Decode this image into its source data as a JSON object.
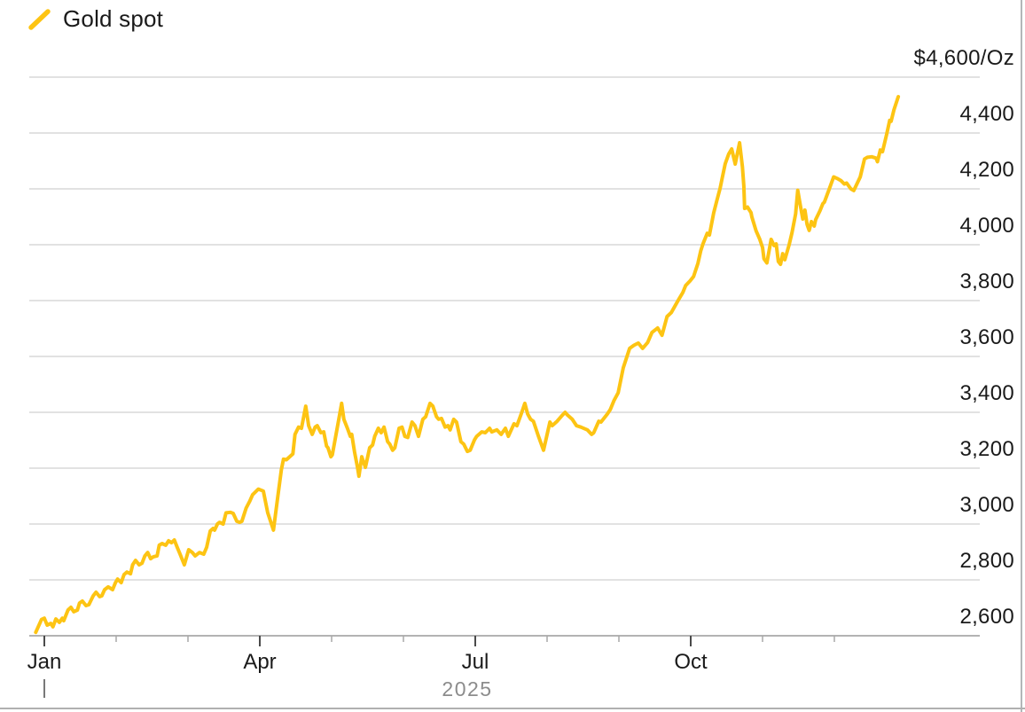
{
  "legend": {
    "label": "Gold spot",
    "swatch_icon": "yellow-slash-icon"
  },
  "colors": {
    "line": "#FDC413",
    "grid": "#d9d9d9",
    "axis": "#9a9a9a",
    "tick_major": "#4a4a4a",
    "tick_minor": "#a8a8a8",
    "text": "#1a1a1a",
    "muted_text": "#8c8c8c",
    "background": "#ffffff"
  },
  "y_axis": {
    "unit": "USD per troy ounce",
    "tick_interval": 200,
    "labels": [
      {
        "text": "$4,600/Oz",
        "value": 4600
      },
      {
        "text": "4,400",
        "value": 4400
      },
      {
        "text": "4,200",
        "value": 4200
      },
      {
        "text": "4,000",
        "value": 4000
      },
      {
        "text": "3,800",
        "value": 3800
      },
      {
        "text": "3,600",
        "value": 3600
      },
      {
        "text": "3,400",
        "value": 3400
      },
      {
        "text": "3,200",
        "value": 3200
      },
      {
        "text": "3,000",
        "value": 3000
      },
      {
        "text": "2,800",
        "value": 2800
      },
      {
        "text": "2,600",
        "value": 2600
      }
    ]
  },
  "x_axis": {
    "year_label": "2025",
    "major_ticks": [
      {
        "label": "Jan",
        "month": 0
      },
      {
        "label": "Apr",
        "month": 3
      },
      {
        "label": "Jul",
        "month": 6
      },
      {
        "label": "Oct",
        "month": 9
      }
    ],
    "minor_tick_months": [
      1,
      2,
      4,
      5,
      7,
      8,
      10,
      11
    ]
  },
  "chart_data": {
    "type": "line",
    "title": "Gold spot price",
    "x_unit": "months since 2025-01-01 (0 = Jan tick; negative = late Dec 2024)",
    "ylim": [
      2600,
      4600
    ],
    "xlim": [
      -0.21,
      13.0
    ],
    "grid": "horizontal",
    "legend_position": "top-left",
    "series": [
      {
        "name": "Gold spot",
        "unit": "$/Oz",
        "color": "#FDC413",
        "points": [
          [
            -0.12,
            2612
          ],
          [
            -0.04,
            2658
          ],
          [
            0.0,
            2663
          ],
          [
            0.04,
            2638
          ],
          [
            0.09,
            2644
          ],
          [
            0.12,
            2632
          ],
          [
            0.16,
            2660
          ],
          [
            0.21,
            2648
          ],
          [
            0.25,
            2663
          ],
          [
            0.27,
            2654
          ],
          [
            0.33,
            2692
          ],
          [
            0.37,
            2702
          ],
          [
            0.41,
            2686
          ],
          [
            0.46,
            2692
          ],
          [
            0.49,
            2717
          ],
          [
            0.53,
            2724
          ],
          [
            0.58,
            2708
          ],
          [
            0.62,
            2711
          ],
          [
            0.68,
            2743
          ],
          [
            0.72,
            2756
          ],
          [
            0.77,
            2740
          ],
          [
            0.8,
            2743
          ],
          [
            0.84,
            2765
          ],
          [
            0.89,
            2775
          ],
          [
            0.95,
            2765
          ],
          [
            0.99,
            2790
          ],
          [
            1.02,
            2803
          ],
          [
            1.07,
            2790
          ],
          [
            1.11,
            2819
          ],
          [
            1.15,
            2828
          ],
          [
            1.2,
            2822
          ],
          [
            1.23,
            2854
          ],
          [
            1.27,
            2870
          ],
          [
            1.32,
            2854
          ],
          [
            1.36,
            2860
          ],
          [
            1.4,
            2886
          ],
          [
            1.44,
            2898
          ],
          [
            1.48,
            2876
          ],
          [
            1.52,
            2883
          ],
          [
            1.57,
            2886
          ],
          [
            1.6,
            2924
          ],
          [
            1.64,
            2930
          ],
          [
            1.69,
            2924
          ],
          [
            1.73,
            2940
          ],
          [
            1.77,
            2933
          ],
          [
            1.81,
            2943
          ],
          [
            1.85,
            2917
          ],
          [
            1.89,
            2892
          ],
          [
            1.95,
            2854
          ],
          [
            2.01,
            2908
          ],
          [
            2.06,
            2898
          ],
          [
            2.1,
            2886
          ],
          [
            2.16,
            2898
          ],
          [
            2.22,
            2892
          ],
          [
            2.26,
            2917
          ],
          [
            2.31,
            2975
          ],
          [
            2.35,
            2984
          ],
          [
            2.37,
            2978
          ],
          [
            2.41,
            3000
          ],
          [
            2.44,
            3006
          ],
          [
            2.49,
            3000
          ],
          [
            2.53,
            3040
          ],
          [
            2.59,
            3042
          ],
          [
            2.63,
            3038
          ],
          [
            2.68,
            3010
          ],
          [
            2.72,
            3006
          ],
          [
            2.75,
            3010
          ],
          [
            2.81,
            3057
          ],
          [
            2.86,
            3082
          ],
          [
            2.9,
            3105
          ],
          [
            2.98,
            3125
          ],
          [
            3.05,
            3118
          ],
          [
            3.11,
            3041
          ],
          [
            3.19,
            2978
          ],
          [
            3.25,
            3098
          ],
          [
            3.3,
            3194
          ],
          [
            3.33,
            3232
          ],
          [
            3.37,
            3230
          ],
          [
            3.46,
            3251
          ],
          [
            3.49,
            3321
          ],
          [
            3.54,
            3347
          ],
          [
            3.58,
            3343
          ],
          [
            3.64,
            3422
          ],
          [
            3.68,
            3352
          ],
          [
            3.73,
            3321
          ],
          [
            3.77,
            3347
          ],
          [
            3.8,
            3352
          ],
          [
            3.85,
            3327
          ],
          [
            3.89,
            3330
          ],
          [
            3.93,
            3279
          ],
          [
            3.95,
            3273
          ],
          [
            3.99,
            3241
          ],
          [
            4.01,
            3248
          ],
          [
            4.1,
            3375
          ],
          [
            4.14,
            3432
          ],
          [
            4.17,
            3375
          ],
          [
            4.22,
            3343
          ],
          [
            4.26,
            3314
          ],
          [
            4.28,
            3321
          ],
          [
            4.32,
            3257
          ],
          [
            4.36,
            3203
          ],
          [
            4.38,
            3171
          ],
          [
            4.42,
            3241
          ],
          [
            4.47,
            3203
          ],
          [
            4.53,
            3273
          ],
          [
            4.57,
            3283
          ],
          [
            4.6,
            3314
          ],
          [
            4.65,
            3343
          ],
          [
            4.69,
            3327
          ],
          [
            4.73,
            3347
          ],
          [
            4.78,
            3295
          ],
          [
            4.81,
            3286
          ],
          [
            4.85,
            3264
          ],
          [
            4.88,
            3273
          ],
          [
            4.94,
            3343
          ],
          [
            4.98,
            3347
          ],
          [
            5.02,
            3314
          ],
          [
            5.06,
            3310
          ],
          [
            5.12,
            3365
          ],
          [
            5.16,
            3352
          ],
          [
            5.21,
            3314
          ],
          [
            5.27,
            3375
          ],
          [
            5.31,
            3384
          ],
          [
            5.37,
            3432
          ],
          [
            5.41,
            3422
          ],
          [
            5.46,
            3384
          ],
          [
            5.49,
            3375
          ],
          [
            5.53,
            3378
          ],
          [
            5.58,
            3347
          ],
          [
            5.62,
            3352
          ],
          [
            5.65,
            3337
          ],
          [
            5.7,
            3375
          ],
          [
            5.74,
            3365
          ],
          [
            5.8,
            3295
          ],
          [
            5.84,
            3286
          ],
          [
            5.89,
            3260
          ],
          [
            5.93,
            3264
          ],
          [
            5.99,
            3302
          ],
          [
            6.02,
            3314
          ],
          [
            6.09,
            3330
          ],
          [
            6.14,
            3327
          ],
          [
            6.2,
            3343
          ],
          [
            6.23,
            3330
          ],
          [
            6.3,
            3337
          ],
          [
            6.36,
            3321
          ],
          [
            6.42,
            3343
          ],
          [
            6.46,
            3314
          ],
          [
            6.54,
            3359
          ],
          [
            6.58,
            3352
          ],
          [
            6.64,
            3394
          ],
          [
            6.69,
            3432
          ],
          [
            6.73,
            3394
          ],
          [
            6.77,
            3375
          ],
          [
            6.81,
            3368
          ],
          [
            6.88,
            3314
          ],
          [
            6.95,
            3264
          ],
          [
            7.04,
            3365
          ],
          [
            7.07,
            3352
          ],
          [
            7.14,
            3368
          ],
          [
            7.2,
            3386
          ],
          [
            7.25,
            3400
          ],
          [
            7.28,
            3391
          ],
          [
            7.35,
            3375
          ],
          [
            7.41,
            3352
          ],
          [
            7.47,
            3347
          ],
          [
            7.56,
            3337
          ],
          [
            7.62,
            3321
          ],
          [
            7.65,
            3327
          ],
          [
            7.72,
            3368
          ],
          [
            7.75,
            3365
          ],
          [
            7.84,
            3394
          ],
          [
            7.88,
            3410
          ],
          [
            7.93,
            3441
          ],
          [
            7.99,
            3470
          ],
          [
            8.06,
            3559
          ],
          [
            8.15,
            3629
          ],
          [
            8.21,
            3640
          ],
          [
            8.27,
            3648
          ],
          [
            8.33,
            3629
          ],
          [
            8.4,
            3650
          ],
          [
            8.46,
            3686
          ],
          [
            8.54,
            3702
          ],
          [
            8.6,
            3676
          ],
          [
            8.67,
            3743
          ],
          [
            8.73,
            3757
          ],
          [
            8.83,
            3803
          ],
          [
            8.89,
            3829
          ],
          [
            8.93,
            3854
          ],
          [
            8.99,
            3870
          ],
          [
            9.04,
            3886
          ],
          [
            9.1,
            3933
          ],
          [
            9.14,
            3978
          ],
          [
            9.17,
            4003
          ],
          [
            9.23,
            4041
          ],
          [
            9.26,
            4035
          ],
          [
            9.32,
            4114
          ],
          [
            9.36,
            4155
          ],
          [
            9.41,
            4203
          ],
          [
            9.44,
            4240
          ],
          [
            9.48,
            4290
          ],
          [
            9.53,
            4325
          ],
          [
            9.57,
            4343
          ],
          [
            9.62,
            4289
          ],
          [
            9.68,
            4365
          ],
          [
            9.72,
            4279
          ],
          [
            9.74,
            4210
          ],
          [
            9.75,
            4130
          ],
          [
            9.79,
            4135
          ],
          [
            9.84,
            4115
          ],
          [
            9.85,
            4100
          ],
          [
            9.91,
            4050
          ],
          [
            9.96,
            4020
          ],
          [
            10.0,
            3990
          ],
          [
            10.02,
            3950
          ],
          [
            10.06,
            3935
          ],
          [
            10.12,
            4019
          ],
          [
            10.16,
            3997
          ],
          [
            10.19,
            4003
          ],
          [
            10.22,
            3940
          ],
          [
            10.25,
            3930
          ],
          [
            10.28,
            3968
          ],
          [
            10.31,
            3946
          ],
          [
            10.37,
            4000
          ],
          [
            10.41,
            4043
          ],
          [
            10.46,
            4110
          ],
          [
            10.49,
            4195
          ],
          [
            10.53,
            4136
          ],
          [
            10.56,
            4092
          ],
          [
            10.59,
            4124
          ],
          [
            10.62,
            4073
          ],
          [
            10.65,
            4051
          ],
          [
            10.68,
            4083
          ],
          [
            10.72,
            4067
          ],
          [
            10.74,
            4090
          ],
          [
            10.8,
            4122
          ],
          [
            10.84,
            4147
          ],
          [
            10.86,
            4152
          ],
          [
            10.93,
            4200
          ],
          [
            10.99,
            4243
          ],
          [
            11.04,
            4237
          ],
          [
            11.09,
            4230
          ],
          [
            11.14,
            4217
          ],
          [
            11.17,
            4221
          ],
          [
            11.23,
            4200
          ],
          [
            11.27,
            4194
          ],
          [
            11.36,
            4243
          ],
          [
            11.42,
            4307
          ],
          [
            11.46,
            4313
          ],
          [
            11.52,
            4315
          ],
          [
            11.58,
            4310
          ],
          [
            11.6,
            4297
          ],
          [
            11.64,
            4339
          ],
          [
            11.67,
            4333
          ],
          [
            11.73,
            4397
          ],
          [
            11.77,
            4445
          ],
          [
            11.79,
            4442
          ],
          [
            11.83,
            4483
          ],
          [
            11.89,
            4530
          ]
        ]
      }
    ]
  }
}
